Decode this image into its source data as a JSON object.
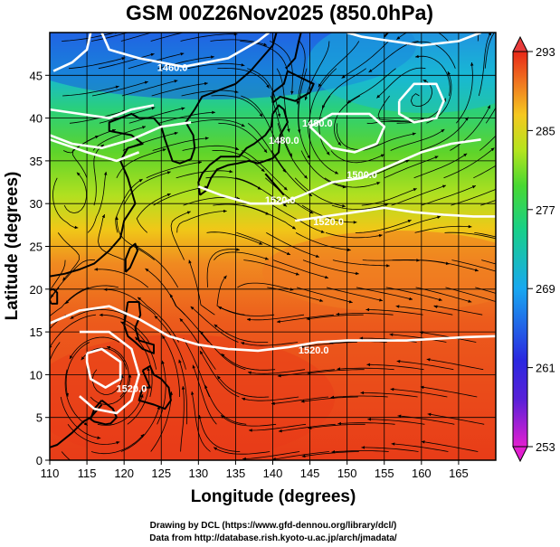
{
  "title": "GSM 00Z26Nov2025 (850.0hPa)",
  "xlabel": "Longitude (degrees)",
  "ylabel": "Latitude  (degrees)",
  "credits": [
    "Drawing by DCL (https://www.gfd-dennou.org/library/dcl/)",
    "Data from http://database.rish.kyoto-u.ac.jp/arch/jmadata/"
  ],
  "chart_data": {
    "type": "heatmap",
    "title": "GSM 00Z26Nov2025 (850.0hPa)",
    "xlabel": "Longitude (degrees)",
    "ylabel": "Latitude  (degrees)",
    "xlim": [
      110,
      170
    ],
    "ylim": [
      0,
      50
    ],
    "x_ticks": [
      110,
      115,
      120,
      125,
      130,
      135,
      140,
      145,
      150,
      155,
      160,
      165
    ],
    "y_ticks": [
      0,
      5,
      10,
      15,
      20,
      25,
      30,
      35,
      40,
      45
    ],
    "grid": true,
    "shading_variable_range": [
      253,
      293
    ],
    "colorbar_ticks": [
      253,
      261,
      269,
      277,
      285,
      293
    ],
    "colorbar_colors": [
      "#e21fd0",
      "#2a20d8",
      "#1a82f0",
      "#19c8b0",
      "#3cd23a",
      "#b4e41e",
      "#f5d020",
      "#f08020",
      "#e83018"
    ],
    "contour_labels": [
      {
        "text": "1460.0",
        "lon": 126.5,
        "lat": 45.5
      },
      {
        "text": "1480.0",
        "lon": 141.5,
        "lat": 37.0
      },
      {
        "text": "1500.0",
        "lon": 152.0,
        "lat": 33.0
      },
      {
        "text": "1520.0",
        "lon": 141.0,
        "lat": 30.0
      },
      {
        "text": "1520.0",
        "lon": 147.5,
        "lat": 27.5
      },
      {
        "text": "1520.0",
        "lon": 145.5,
        "lat": 12.5
      },
      {
        "text": "1520.0",
        "lon": 121.0,
        "lat": 8.0
      },
      {
        "text": "1480.0",
        "lon": 146.0,
        "lat": 39.0
      }
    ],
    "contours": [
      {
        "value": "1460",
        "points": [
          [
            115.5,
            50
          ],
          [
            115,
            48
          ],
          [
            113,
            46.5
          ],
          [
            110.5,
            45.5
          ]
        ]
      },
      {
        "value": "1460",
        "points": [
          [
            117,
            50
          ],
          [
            118,
            48
          ],
          [
            122,
            47
          ],
          [
            128,
            46
          ],
          [
            134,
            47
          ],
          [
            138,
            49
          ],
          [
            139.5,
            50
          ]
        ]
      },
      {
        "value": "1460",
        "points": [
          [
            150,
            50
          ],
          [
            152,
            49.5
          ],
          [
            156,
            49
          ],
          [
            160,
            48.5
          ],
          [
            165,
            49
          ],
          [
            168,
            50
          ]
        ]
      },
      {
        "value": "1480",
        "points": [
          [
            110,
            41
          ],
          [
            114,
            40.5
          ],
          [
            118,
            40
          ],
          [
            121,
            41
          ],
          [
            124,
            41.5
          ]
        ]
      },
      {
        "value": "1480",
        "points": [
          [
            110,
            37.5
          ],
          [
            115,
            36
          ],
          [
            119,
            35
          ],
          [
            122,
            36
          ]
        ]
      },
      {
        "value": "1500",
        "points": [
          [
            130,
            32
          ],
          [
            133,
            31
          ],
          [
            137,
            30
          ],
          [
            141,
            30
          ],
          [
            144,
            31
          ],
          [
            148,
            32.5
          ],
          [
            152,
            33
          ],
          [
            156,
            34.5
          ],
          [
            160,
            36
          ],
          [
            164,
            37
          ],
          [
            168,
            37.5
          ]
        ]
      },
      {
        "value": "1500",
        "points": [
          [
            110,
            38
          ],
          [
            113,
            37
          ],
          [
            117,
            36.5
          ],
          [
            121,
            37.5
          ],
          [
            125,
            39
          ],
          [
            129,
            39.5
          ]
        ]
      },
      {
        "value": "1520",
        "points": [
          [
            143,
            28
          ],
          [
            147,
            28.5
          ],
          [
            151,
            29
          ],
          [
            155,
            29.5
          ],
          [
            159,
            29
          ],
          [
            163,
            28.7
          ],
          [
            167,
            28.5
          ],
          [
            170,
            28.5
          ]
        ]
      },
      {
        "value": "1520",
        "points": [
          [
            110,
            16
          ],
          [
            114,
            17.5
          ],
          [
            118,
            18
          ],
          [
            122,
            16.5
          ],
          [
            126,
            14.5
          ],
          [
            130,
            13.5
          ],
          [
            134,
            13
          ],
          [
            138,
            12.8
          ],
          [
            142,
            13.2
          ],
          [
            146,
            13.8
          ],
          [
            150,
            14
          ],
          [
            154,
            14
          ],
          [
            158,
            14
          ],
          [
            162,
            14.2
          ],
          [
            166,
            14.4
          ],
          [
            170,
            14.5
          ]
        ]
      },
      {
        "value": "1500",
        "points": [
          [
            115,
            12.5
          ],
          [
            117,
            13
          ],
          [
            119.5,
            11.5
          ],
          [
            119.5,
            9.5
          ],
          [
            117.5,
            8.5
          ],
          [
            115.5,
            9.5
          ],
          [
            115,
            11.5
          ],
          [
            115,
            12.5
          ]
        ]
      },
      {
        "value": "1520",
        "points": [
          [
            114,
            15
          ],
          [
            118,
            15
          ],
          [
            121,
            13
          ],
          [
            122,
            10
          ],
          [
            121,
            7
          ],
          [
            119,
            5.5
          ],
          [
            116,
            6
          ],
          [
            114,
            7.5
          ]
        ]
      },
      {
        "value": "1480",
        "points": [
          [
            145,
            39
          ],
          [
            148,
            36.5
          ],
          [
            151,
            36
          ],
          [
            154,
            37
          ],
          [
            155,
            39
          ],
          [
            153,
            40.5
          ],
          [
            148,
            40.5
          ],
          [
            145,
            39
          ]
        ]
      },
      {
        "value": "1480",
        "points": [
          [
            157,
            42
          ],
          [
            159,
            44
          ],
          [
            162,
            44
          ],
          [
            163,
            42
          ],
          [
            162,
            40
          ],
          [
            159,
            39.5
          ],
          [
            157,
            40.5
          ],
          [
            157,
            42
          ]
        ]
      }
    ]
  },
  "colors": {
    "contour": "#ffffff",
    "streamline": "#000000",
    "grid": "#000000",
    "coast": "#000000"
  }
}
